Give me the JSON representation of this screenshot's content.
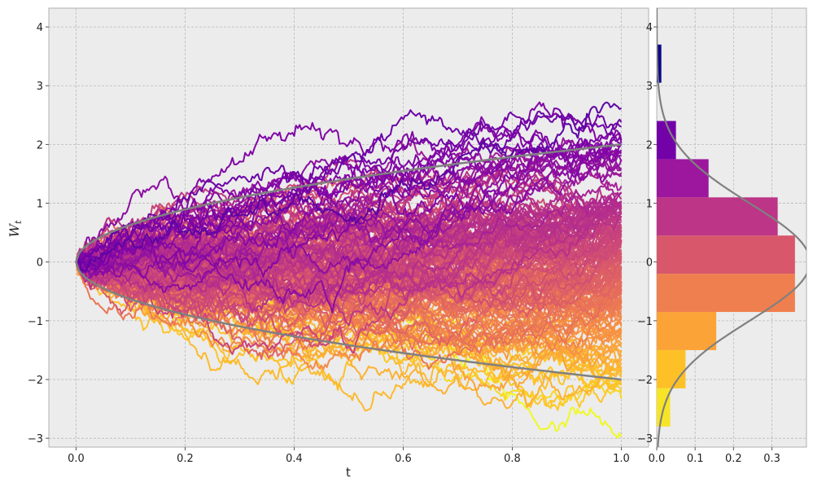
{
  "chart_data": [
    {
      "name": "brownian-paths",
      "type": "line",
      "xlabel": "t",
      "ylabel": "W",
      "ylabel_sub": "t",
      "xlim": [
        -0.05,
        1.05
      ],
      "ylim": [
        -3.15,
        4.32
      ],
      "xticks": [
        0.0,
        0.2,
        0.4,
        0.6,
        0.8,
        1.0
      ],
      "xtick_labels": [
        "0.0",
        "0.2",
        "0.4",
        "0.6",
        "0.8",
        "1.0"
      ],
      "yticks": [
        -3,
        -2,
        -1,
        0,
        1,
        2,
        3,
        4
      ],
      "ytick_labels": [
        "−3",
        "−2",
        "−1",
        "0",
        "1",
        "2",
        "3",
        "4"
      ],
      "grid": true,
      "background": "#ececec",
      "path_count": 200,
      "step_count": 300,
      "path_colormap": "plasma",
      "path_endpoint_range": [
        -2.8,
        3.75
      ],
      "envelope": {
        "formula": "±2·sqrt(t)",
        "color": "#808080",
        "x": [
          0.0,
          0.1,
          0.2,
          0.3,
          0.4,
          0.5,
          0.6,
          0.7,
          0.8,
          0.9,
          1.0
        ],
        "upper": [
          0.0,
          0.63,
          0.89,
          1.1,
          1.26,
          1.41,
          1.55,
          1.67,
          1.79,
          1.9,
          2.0
        ],
        "lower": [
          0.0,
          -0.63,
          -0.89,
          -1.1,
          -1.26,
          -1.41,
          -1.55,
          -1.67,
          -1.79,
          -1.9,
          -2.0
        ]
      }
    },
    {
      "name": "endpoint-histogram",
      "type": "bar",
      "orientation": "horizontal",
      "xlim": [
        0.0,
        0.39
      ],
      "ylim": [
        -3.15,
        4.32
      ],
      "xticks": [
        0.0,
        0.1,
        0.2,
        0.3
      ],
      "xtick_labels": [
        "0.0",
        "0.1",
        "0.2",
        "0.3"
      ],
      "yticks": [
        -3,
        -2,
        -1,
        0,
        1,
        2,
        3,
        4
      ],
      "ytick_labels": [
        "−3",
        "−2",
        "−1",
        "0",
        "1",
        "2",
        "3",
        "4"
      ],
      "grid": true,
      "bins": [
        -2.8,
        -2.15,
        -1.5,
        -0.85,
        -0.2,
        0.45,
        1.1,
        1.75,
        2.4,
        3.05,
        3.7
      ],
      "densities": [
        0.035,
        0.075,
        0.155,
        0.36,
        0.36,
        0.315,
        0.135,
        0.05,
        0.0,
        0.012
      ],
      "bar_colors": [
        "#f7e426",
        "#fdc127",
        "#fca338",
        "#f07f4f",
        "#d8576b",
        "#bc3587",
        "#9c179e",
        "#7301a8",
        "#4c02a1",
        "#0d0887"
      ],
      "pdf_curve": {
        "distribution": "normal",
        "mean": 0,
        "std": 1,
        "color": "#808080"
      }
    }
  ]
}
